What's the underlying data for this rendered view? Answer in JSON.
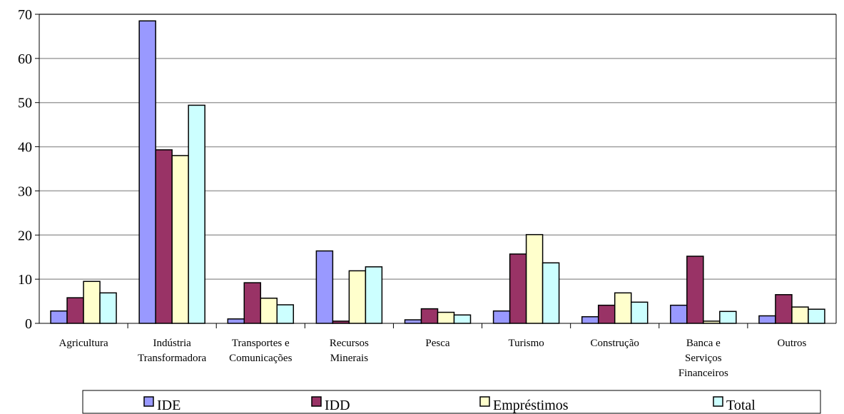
{
  "chart_data": {
    "type": "bar",
    "categories": [
      [
        "Agricultura"
      ],
      [
        "Indústria",
        "Transformadora"
      ],
      [
        "Transportes e",
        "Comunicações"
      ],
      [
        "Recursos",
        "Minerais"
      ],
      [
        "Pesca"
      ],
      [
        "Turismo"
      ],
      [
        "Construção"
      ],
      [
        "Banca e",
        "Serviços",
        "Financeiros"
      ],
      [
        "Outros"
      ]
    ],
    "series": [
      {
        "name": "IDE",
        "color": "#9999FF",
        "values": [
          2.8,
          68.5,
          1.0,
          16.4,
          0.8,
          2.8,
          1.5,
          4.1,
          1.7
        ]
      },
      {
        "name": "IDD",
        "color": "#993366",
        "values": [
          5.8,
          39.3,
          9.2,
          0.5,
          3.3,
          15.7,
          4.1,
          15.2,
          6.5
        ]
      },
      {
        "name": "Empréstimos",
        "color": "#FFFFCC",
        "values": [
          9.5,
          38.0,
          5.7,
          11.9,
          2.5,
          20.1,
          6.9,
          0.5,
          3.7
        ]
      },
      {
        "name": "Total",
        "color": "#CCFFFF",
        "values": [
          6.9,
          49.4,
          4.2,
          12.8,
          1.9,
          13.7,
          4.8,
          2.7,
          3.2
        ]
      }
    ],
    "yticks": [
      0,
      10,
      20,
      30,
      40,
      50,
      60,
      70
    ],
    "ylim": [
      0,
      70
    ],
    "grid": true,
    "legend": "bottom",
    "title": "",
    "xlabel": "",
    "ylabel": ""
  }
}
